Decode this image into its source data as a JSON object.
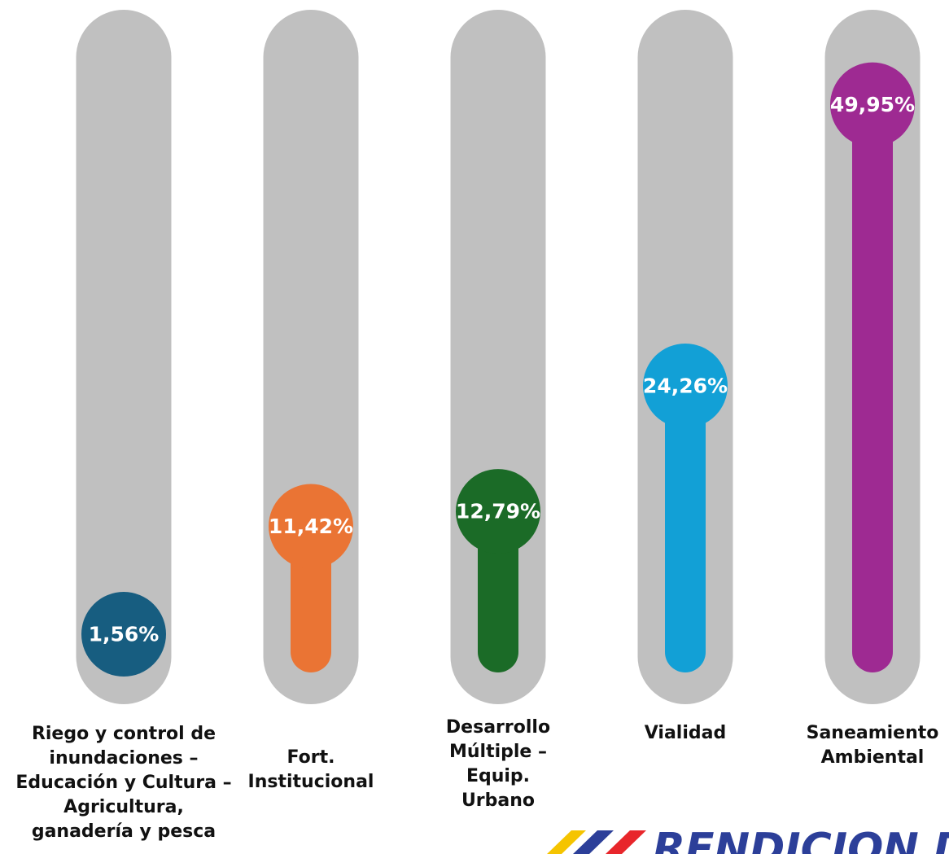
{
  "chart_data": {
    "type": "bar",
    "categories": [
      "Riego y control de inundaciones – Educación y Cultura – Agricultura, ganadería y pesca",
      "Fort. Institucional",
      "Desarrollo Múltiple – Equip. Urbano",
      "Vialidad",
      "Saneamiento Ambiental"
    ],
    "category_lines": [
      [
        "Riego y control de",
        "inundaciones –",
        "Educación y Cultura –",
        "Agricultura,",
        "ganadería y pesca"
      ],
      [
        "Fort.",
        "Institucional"
      ],
      [
        "Desarrollo",
        "Múltiple –",
        "Equip.",
        "Urbano"
      ],
      [
        "Vialidad"
      ],
      [
        "Saneamiento",
        "Ambiental"
      ]
    ],
    "values": [
      1.56,
      11.42,
      12.79,
      24.26,
      49.95
    ],
    "value_labels": [
      "1,56%",
      "11,42%",
      "12,79%",
      "24,26%",
      "49,95%"
    ],
    "colors": [
      "#175d80",
      "#ea7434",
      "#1b6b27",
      "#12a0d6",
      "#9e2a92"
    ],
    "track_color": "#c0c0c0",
    "ylim": [
      0,
      50
    ],
    "grid": false
  },
  "logo": {
    "text": "RENDICIÓN DE",
    "colors": [
      "#f5c400",
      "#2c3f99",
      "#e8262b"
    ]
  }
}
